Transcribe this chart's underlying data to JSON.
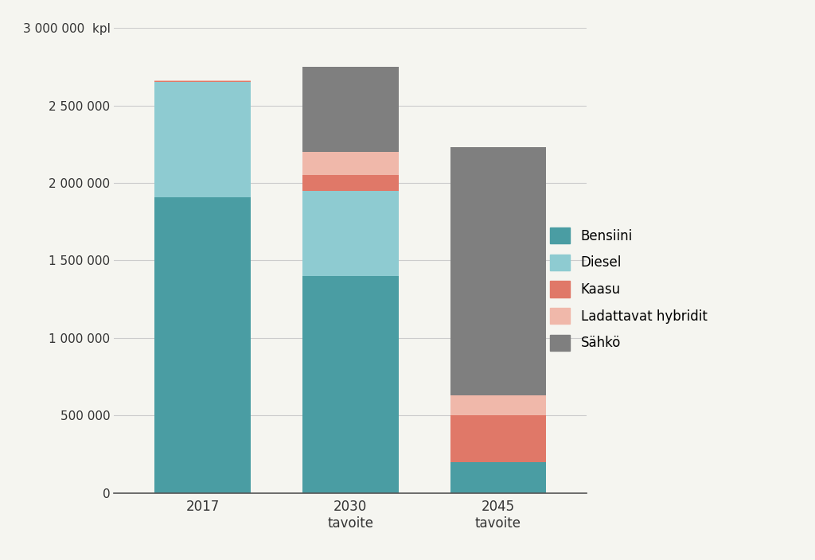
{
  "categories": [
    "2017",
    "2030\ntavoite",
    "2045\ntavoite"
  ],
  "series": {
    "Bensiini": [
      1910000,
      1400000,
      200000
    ],
    "Diesel": [
      740000,
      550000,
      0
    ],
    "Kaasu": [
      5000,
      100000,
      300000
    ],
    "Ladattavat hybridit": [
      5000,
      150000,
      130000
    ],
    "Sähkö": [
      0,
      550000,
      1600000
    ]
  },
  "colors": {
    "Bensiini": "#4a9da3",
    "Diesel": "#8ecbd1",
    "Kaasu": "#e07868",
    "Ladattavat hybridit": "#f0b8aa",
    "Sähkö": "#7f7f7f"
  },
  "ylim": [
    0,
    3000000
  ],
  "yticks": [
    0,
    500000,
    1000000,
    1500000,
    2000000,
    2500000,
    3000000
  ],
  "ytick_labels": [
    "0",
    "500 000",
    "1 000 000",
    "1 500 000",
    "2 000 000",
    "2 500 000",
    "3 000 000  kpl"
  ],
  "bar_width": 0.65,
  "background_color": "#f5f5f0",
  "grid_color": "#cccccc",
  "legend_order": [
    "Bensiini",
    "Diesel",
    "Kaasu",
    "Ladattavat hybridit",
    "Sähkö"
  ]
}
